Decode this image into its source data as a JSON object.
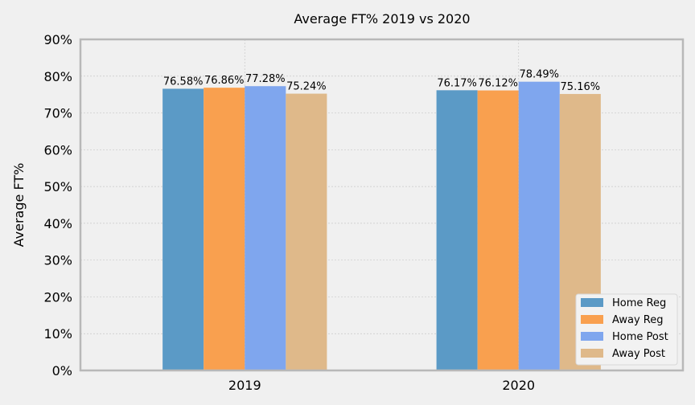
{
  "chart_data": {
    "type": "bar",
    "title": "Average FT% 2019 vs 2020",
    "xlabel": "",
    "ylabel": "Average FT%",
    "categories": [
      "2019",
      "2020"
    ],
    "ylim": [
      0,
      90
    ],
    "yticks": [
      "0%",
      "10%",
      "20%",
      "30%",
      "40%",
      "50%",
      "60%",
      "70%",
      "80%",
      "90%"
    ],
    "grid": true,
    "legend_position": "bottom-right",
    "series": [
      {
        "name": "Home Reg",
        "color": "#5b9ac6",
        "values": [
          76.58,
          76.17
        ],
        "labels": [
          "76.58%",
          "76.17%"
        ]
      },
      {
        "name": "Away Reg",
        "color": "#f9a04f",
        "values": [
          76.86,
          76.12
        ],
        "labels": [
          "76.86%",
          "76.12%"
        ]
      },
      {
        "name": "Home Post",
        "color": "#7fa6ee",
        "values": [
          77.28,
          78.49
        ],
        "labels": [
          "77.28%",
          "78.49%"
        ]
      },
      {
        "name": "Away Post",
        "color": "#dfb98a",
        "values": [
          75.24,
          75.16
        ],
        "labels": [
          "75.24%",
          "75.16%"
        ]
      }
    ]
  }
}
